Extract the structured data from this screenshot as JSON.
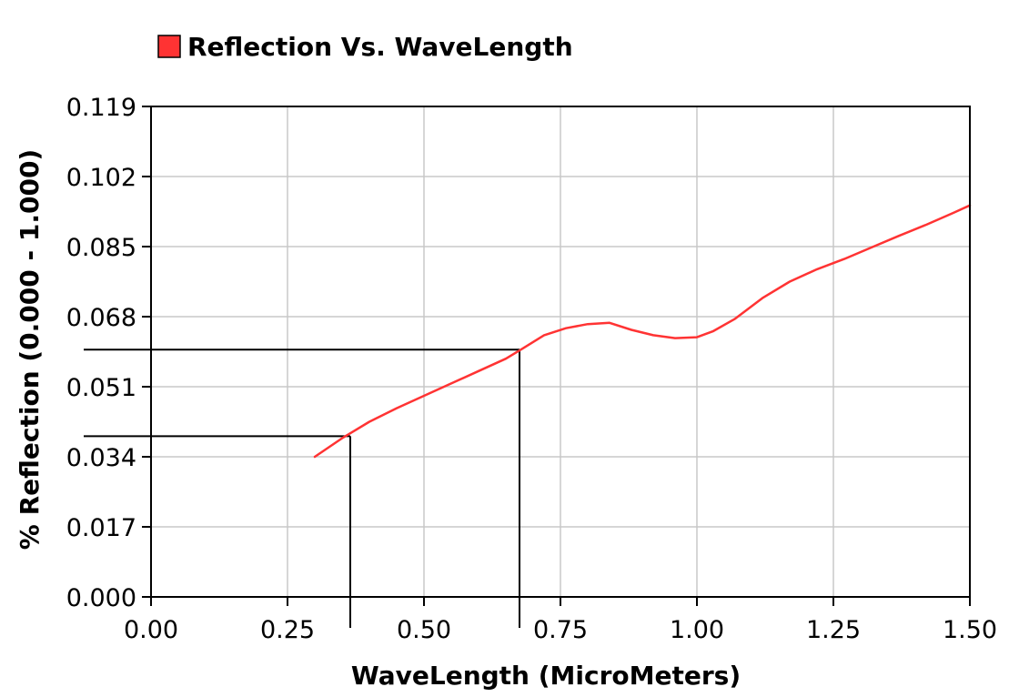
{
  "chart_data": {
    "type": "line",
    "title": "",
    "legend": {
      "position": "top-left",
      "entries": [
        {
          "label": "Reflection Vs. WaveLength",
          "color": "#ff3333"
        }
      ]
    },
    "xlabel": "WaveLength (MicroMeters)",
    "ylabel": "% Reflection (0.000 - 1.000)",
    "xlim": [
      0.0,
      1.5
    ],
    "ylim": [
      0.0,
      0.119
    ],
    "x_ticks": [
      0.0,
      0.25,
      0.5,
      0.75,
      1.0,
      1.25,
      1.5
    ],
    "x_tick_labels": [
      "0.00",
      "0.25",
      "0.50",
      "0.75",
      "1.00",
      "1.25",
      "1.50"
    ],
    "y_ticks": [
      0.0,
      0.017,
      0.034,
      0.051,
      0.068,
      0.085,
      0.102,
      0.119
    ],
    "y_tick_labels": [
      "0.000",
      "0.017",
      "0.034",
      "0.051",
      "0.068",
      "0.085",
      "0.102",
      "0.119"
    ],
    "grid": true,
    "series": [
      {
        "name": "Reflection Vs. WaveLength",
        "color": "#ff3333",
        "x": [
          0.3,
          0.35,
          0.4,
          0.45,
          0.5,
          0.55,
          0.6,
          0.65,
          0.68,
          0.72,
          0.76,
          0.8,
          0.84,
          0.88,
          0.92,
          0.96,
          1.0,
          1.03,
          1.07,
          1.12,
          1.17,
          1.22,
          1.27,
          1.32,
          1.37,
          1.42,
          1.47,
          1.5
        ],
        "y": [
          0.034,
          0.0385,
          0.0425,
          0.0458,
          0.0488,
          0.0518,
          0.0548,
          0.0578,
          0.0602,
          0.0635,
          0.0652,
          0.0662,
          0.0665,
          0.0648,
          0.0635,
          0.0628,
          0.063,
          0.0645,
          0.0675,
          0.0725,
          0.0765,
          0.0795,
          0.082,
          0.0848,
          0.0876,
          0.0903,
          0.0932,
          0.095
        ]
      }
    ],
    "reference_lines": [
      {
        "x": 0.365,
        "y": 0.039,
        "color": "#000000"
      },
      {
        "x": 0.675,
        "y": 0.06,
        "color": "#000000"
      }
    ],
    "colors": {
      "plot_border": "#000000",
      "grid": "#c8c8c8",
      "line": "#ff3333"
    }
  }
}
